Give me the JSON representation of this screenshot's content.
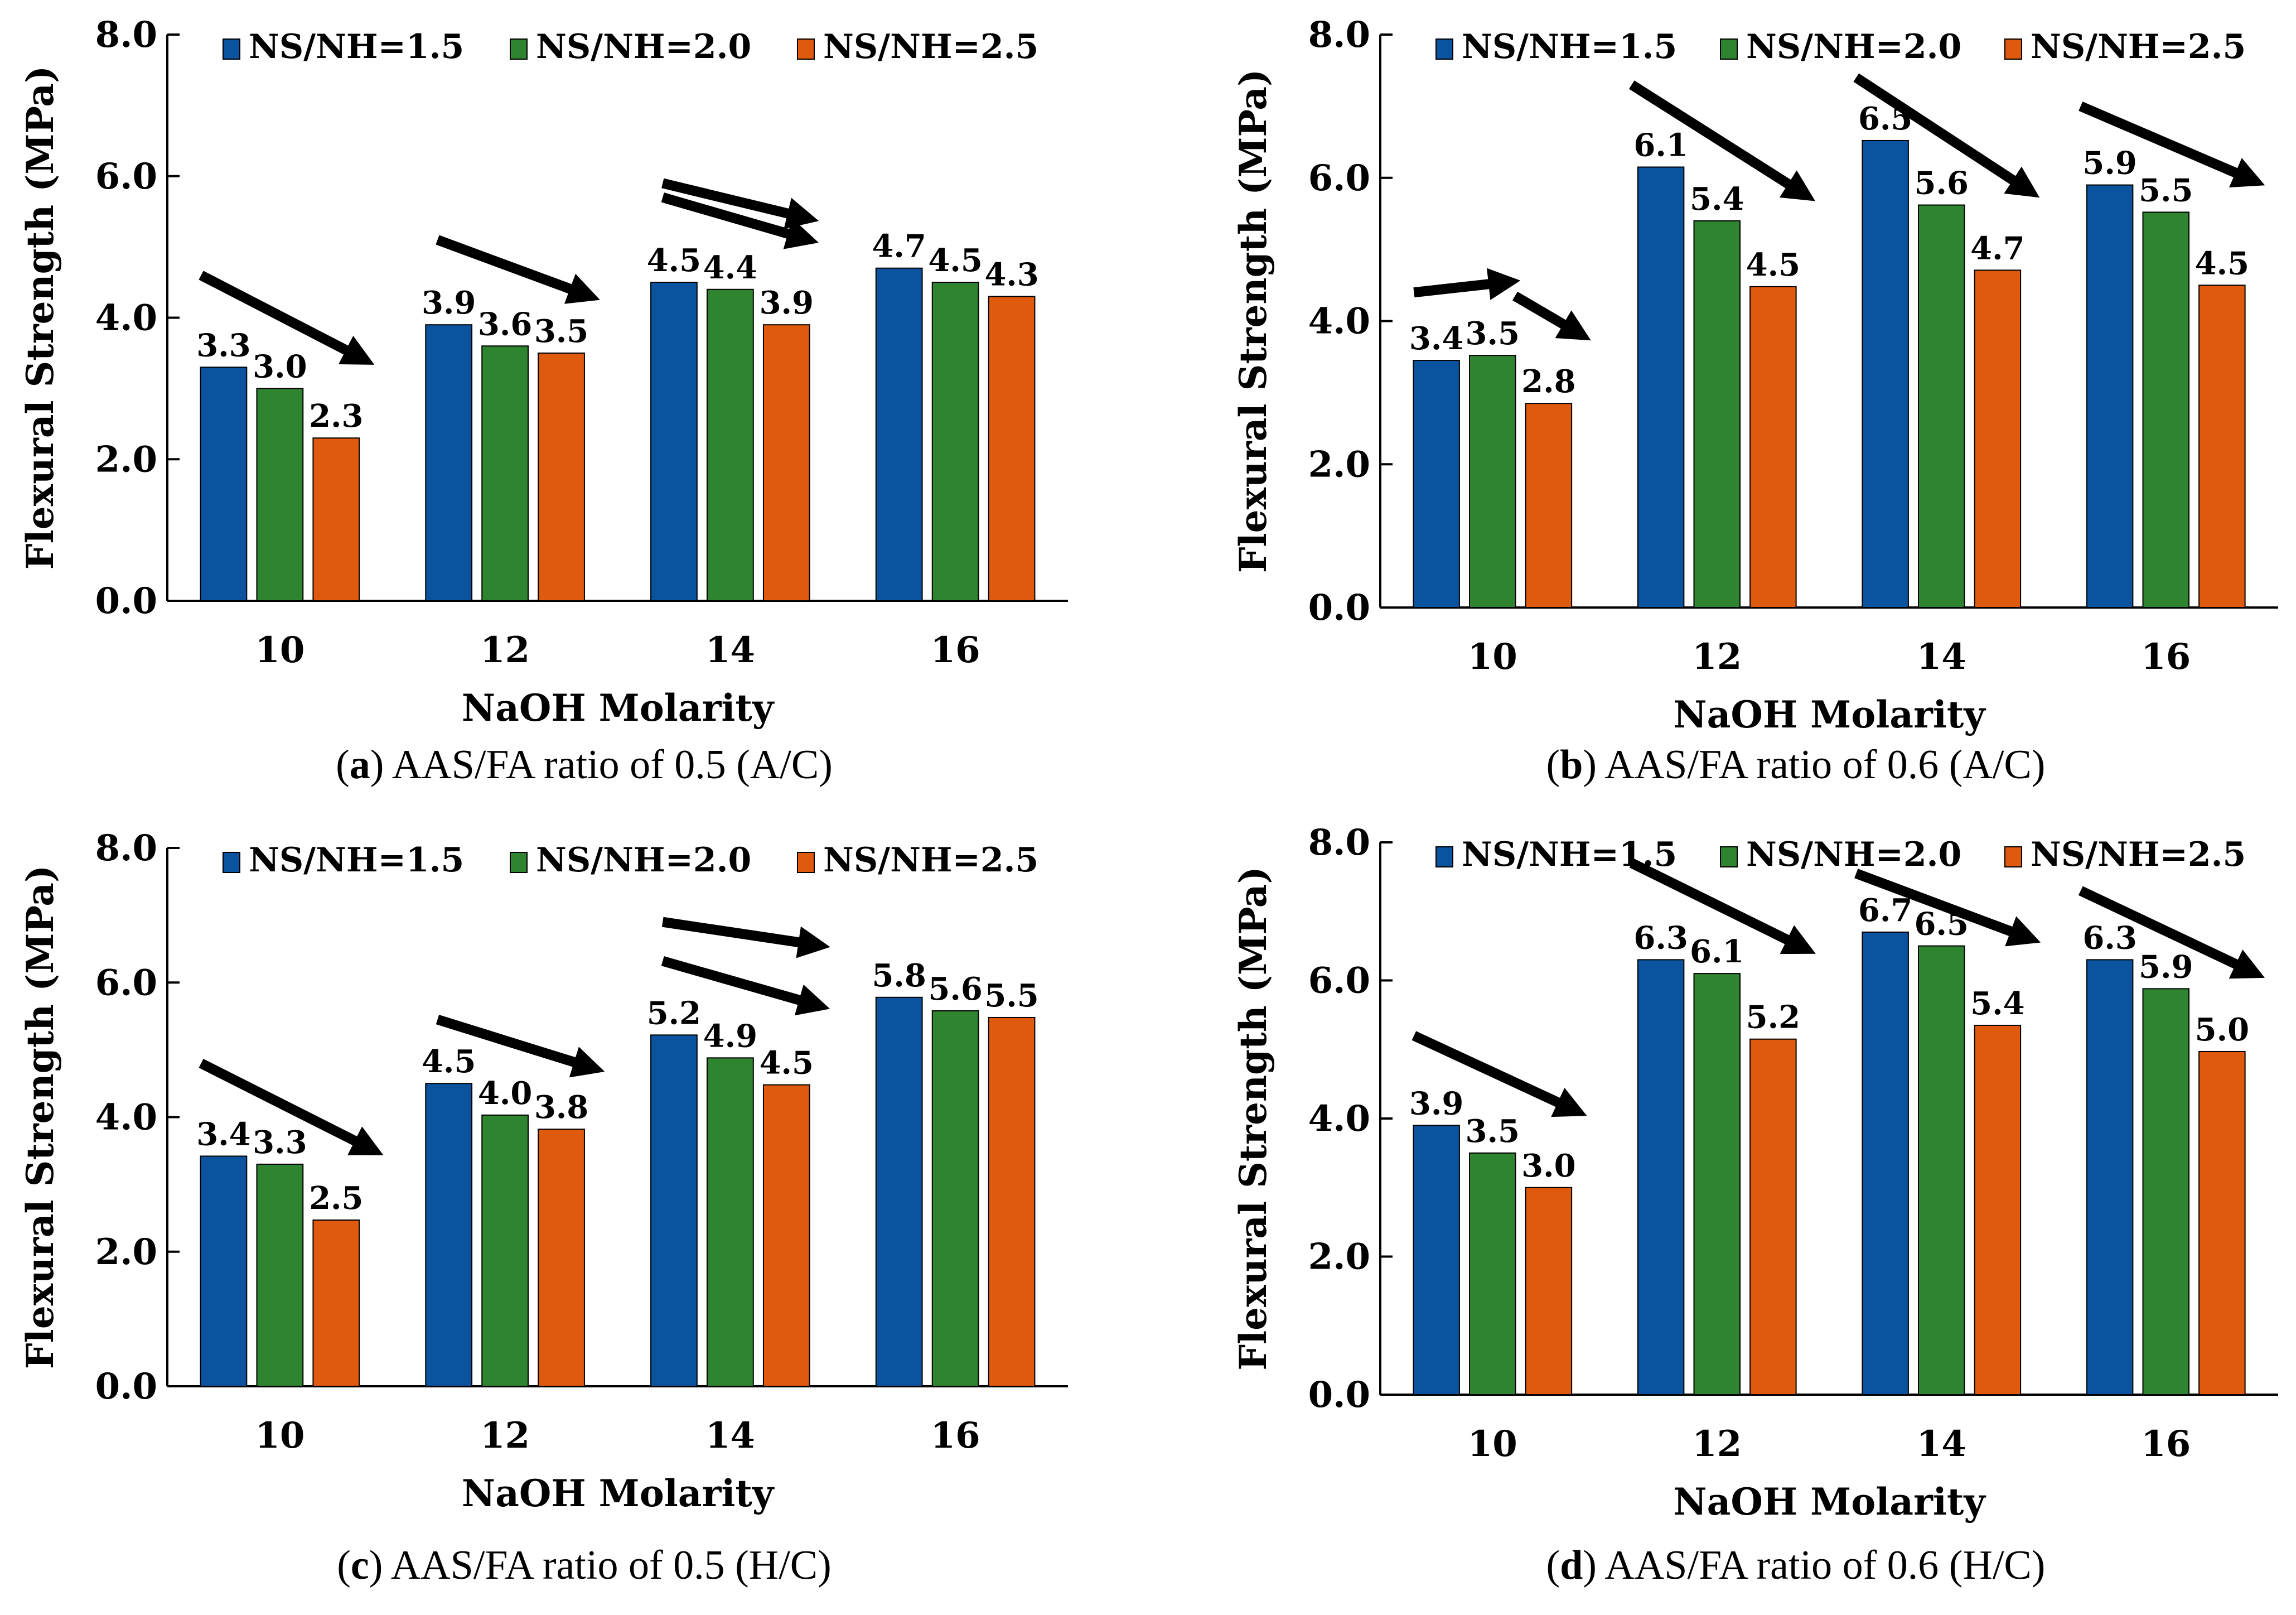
{
  "colors": {
    "series": [
      "#0b539e",
      "#2f852f",
      "#df5a0d"
    ],
    "axis": "#000000",
    "arrow": "#000000"
  },
  "chart_data": [
    {
      "type": "bar",
      "panel": "a",
      "caption_letter": "a",
      "caption": " AAS/FA ratio of 0.5 (A/C)",
      "categories": [
        "10",
        "12",
        "14",
        "16"
      ],
      "series": [
        {
          "name": "NS/NH=1.5",
          "values": [
            3.3,
            3.9,
            4.5,
            4.7
          ],
          "labels": [
            "3.3",
            "3.9",
            "4.5",
            "4.7"
          ]
        },
        {
          "name": "NS/NH=2.0",
          "values": [
            3.0,
            3.6,
            4.4,
            4.5
          ],
          "labels": [
            "3.0",
            "3.6",
            "4.4",
            "4.5"
          ]
        },
        {
          "name": "NS/NH=2.5",
          "values": [
            2.3,
            3.5,
            3.9,
            4.3
          ],
          "labels": [
            "2.3",
            "3.5",
            "3.9",
            "4.3"
          ]
        }
      ],
      "xlabel": "NaOH Molarity",
      "ylabel": "Flexural Strength (MPa)",
      "ylim": [
        0,
        8
      ],
      "yticks": [
        "0.0",
        "2.0",
        "4.0",
        "6.0",
        "8.0"
      ],
      "legend": "top",
      "annotations": [
        {
          "type": "arrow",
          "from": [
            -0.35,
            4.6
          ],
          "to": [
            0.38,
            3.4
          ]
        },
        {
          "type": "arrow",
          "from": [
            0.7,
            5.1
          ],
          "to": [
            1.38,
            4.3
          ]
        },
        {
          "type": "arrow",
          "from": [
            1.7,
            5.7
          ],
          "to": [
            2.35,
            5.1
          ]
        },
        {
          "type": "arrow",
          "from": [
            1.7,
            5.9
          ],
          "to": [
            2.35,
            5.4
          ]
        }
      ]
    },
    {
      "type": "bar",
      "panel": "b",
      "caption_letter": "b",
      "caption": " AAS/FA ratio of 0.6 (A/C)",
      "categories": [
        "10",
        "12",
        "14",
        "16"
      ],
      "series": [
        {
          "name": "NS/NH=1.5",
          "values": [
            3.45,
            6.15,
            6.52,
            5.9
          ],
          "labels": [
            "3.4",
            "6.1",
            "6.5",
            "5.9"
          ]
        },
        {
          "name": "NS/NH=2.0",
          "values": [
            3.52,
            5.4,
            5.62,
            5.52
          ],
          "labels": [
            "3.5",
            "5.4",
            "5.6",
            "5.5"
          ]
        },
        {
          "name": "NS/NH=2.5",
          "values": [
            2.85,
            4.48,
            4.71,
            4.5
          ],
          "labels": [
            "2.8",
            "4.5",
            "4.7",
            "4.5"
          ]
        }
      ],
      "xlabel": "NaOH Molarity",
      "ylabel": "Flexural Strength (MPa)",
      "ylim": [
        0,
        8
      ],
      "yticks": [
        "0.0",
        "2.0",
        "4.0",
        "6.0",
        "8.0"
      ],
      "legend": "top",
      "annotations": [
        {
          "type": "arrow",
          "from": [
            -0.35,
            4.4
          ],
          "to": [
            0.08,
            4.55
          ]
        },
        {
          "type": "arrow",
          "from": [
            0.1,
            4.35
          ],
          "to": [
            0.4,
            3.8
          ]
        },
        {
          "type": "arrow",
          "from": [
            0.62,
            7.3
          ],
          "to": [
            1.4,
            5.75
          ]
        },
        {
          "type": "arrow",
          "from": [
            1.62,
            7.4
          ],
          "to": [
            2.4,
            5.8
          ]
        },
        {
          "type": "arrow",
          "from": [
            2.62,
            7.0
          ],
          "to": [
            3.4,
            5.95
          ]
        }
      ]
    },
    {
      "type": "bar",
      "panel": "c",
      "caption_letter": "c",
      "caption": " AAS/FA ratio of 0.5 (H/C)",
      "categories": [
        "10",
        "12",
        "14",
        "16"
      ],
      "series": [
        {
          "name": "NS/NH=1.5",
          "values": [
            3.42,
            4.5,
            5.22,
            5.78
          ],
          "labels": [
            "3.4",
            "4.5",
            "5.2",
            "5.8"
          ]
        },
        {
          "name": "NS/NH=2.0",
          "values": [
            3.3,
            4.03,
            4.88,
            5.58
          ],
          "labels": [
            "3.3",
            "4.0",
            "4.9",
            "5.6"
          ]
        },
        {
          "name": "NS/NH=2.5",
          "values": [
            2.47,
            3.82,
            4.48,
            5.48
          ],
          "labels": [
            "2.5",
            "3.8",
            "4.5",
            "5.5"
          ]
        }
      ],
      "xlabel": "NaOH Molarity",
      "ylabel": "Flexural Strength (MPa)",
      "ylim": [
        0,
        8
      ],
      "yticks": [
        "0.0",
        "2.0",
        "4.0",
        "6.0",
        "8.0"
      ],
      "legend": "top",
      "annotations": [
        {
          "type": "arrow",
          "from": [
            -0.35,
            4.8
          ],
          "to": [
            0.42,
            3.5
          ]
        },
        {
          "type": "arrow",
          "from": [
            0.7,
            5.45
          ],
          "to": [
            1.4,
            4.72
          ]
        },
        {
          "type": "arrow",
          "from": [
            1.7,
            6.32
          ],
          "to": [
            2.4,
            5.65
          ]
        },
        {
          "type": "arrow",
          "from": [
            1.7,
            6.9
          ],
          "to": [
            2.4,
            6.55
          ]
        }
      ]
    },
    {
      "type": "bar",
      "panel": "d",
      "caption_letter": "d",
      "caption": " AAS/FA ratio of 0.6 (H/C)",
      "categories": [
        "10",
        "12",
        "14",
        "16"
      ],
      "series": [
        {
          "name": "NS/NH=1.5",
          "values": [
            3.9,
            6.3,
            6.7,
            6.3
          ],
          "labels": [
            "3.9",
            "6.3",
            "6.7",
            "6.3"
          ]
        },
        {
          "name": "NS/NH=2.0",
          "values": [
            3.5,
            6.1,
            6.5,
            5.88
          ],
          "labels": [
            "3.5",
            "6.1",
            "6.5",
            "5.9"
          ]
        },
        {
          "name": "NS/NH=2.5",
          "values": [
            3.0,
            5.15,
            5.35,
            4.97
          ],
          "labels": [
            "3.0",
            "5.2",
            "5.4",
            "5.0"
          ]
        }
      ],
      "xlabel": "NaOH Molarity",
      "ylabel": "Flexural Strength (MPa)",
      "ylim": [
        0,
        8
      ],
      "yticks": [
        "0.0",
        "2.0",
        "4.0",
        "6.0",
        "8.0"
      ],
      "legend": "top",
      "annotations": [
        {
          "type": "arrow",
          "from": [
            -0.35,
            5.2
          ],
          "to": [
            0.38,
            4.1
          ]
        },
        {
          "type": "arrow",
          "from": [
            0.62,
            7.7
          ],
          "to": [
            1.4,
            6.45
          ]
        },
        {
          "type": "arrow",
          "from": [
            1.62,
            7.55
          ],
          "to": [
            2.4,
            6.6
          ]
        },
        {
          "type": "arrow",
          "from": [
            2.62,
            7.3
          ],
          "to": [
            3.4,
            6.1
          ]
        }
      ]
    }
  ]
}
